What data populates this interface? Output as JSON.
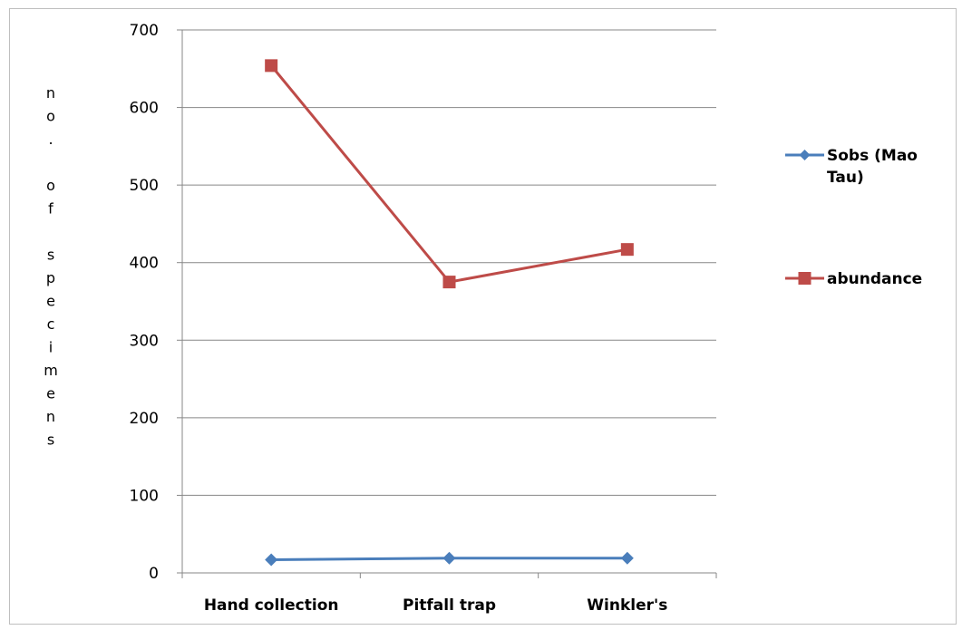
{
  "chart_data": {
    "type": "line",
    "title": "",
    "xlabel": "",
    "ylabel": "no. of specimens",
    "categories": [
      "Hand collection",
      "Pitfall trap",
      "Winkler's"
    ],
    "ylim": [
      0,
      700
    ],
    "yticks": [
      0,
      100,
      200,
      300,
      400,
      500,
      600,
      700
    ],
    "grid": true,
    "legend_position": "right",
    "series": [
      {
        "name": "Sobs (Mao Tau)",
        "legend_lines": [
          "Sobs (Mao",
          "Tau)"
        ],
        "values": [
          17,
          19,
          19
        ],
        "color": "#4a7ebb",
        "marker": "diamond"
      },
      {
        "name": "abundance",
        "legend_lines": [
          "abundance"
        ],
        "values": [
          654,
          375,
          417
        ],
        "color": "#be4b48",
        "marker": "square"
      }
    ]
  }
}
